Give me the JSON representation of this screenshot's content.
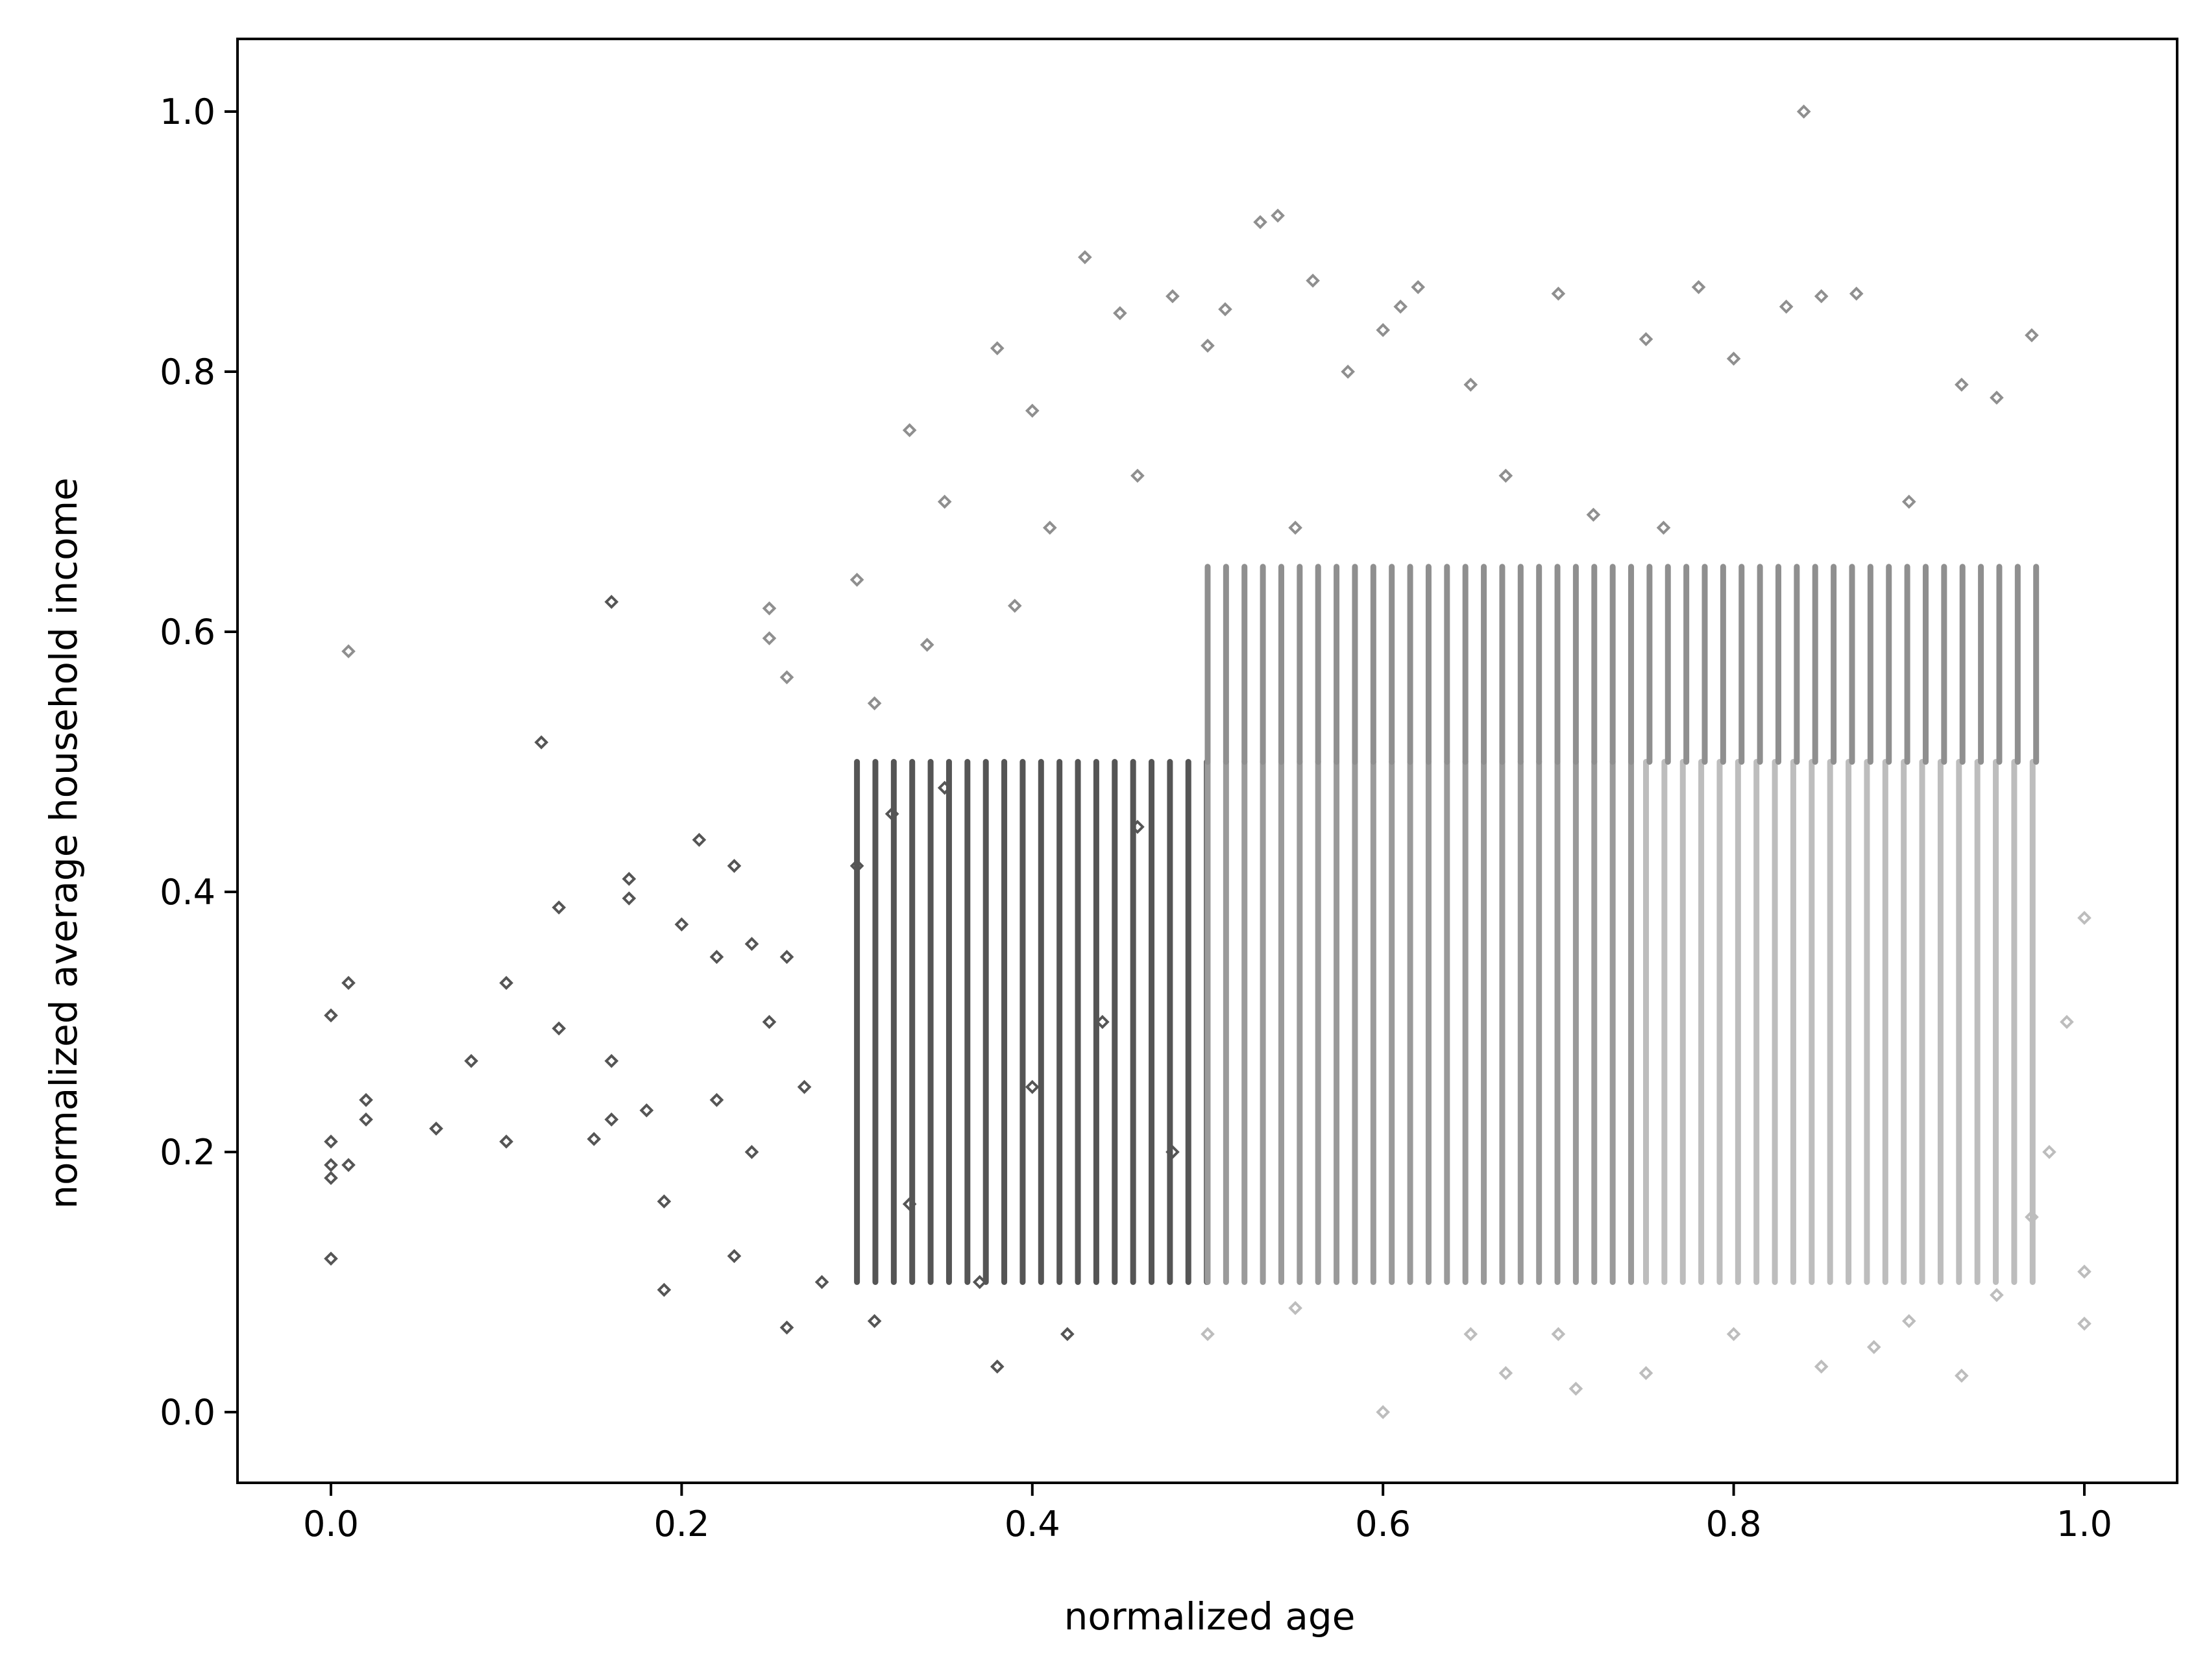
{
  "chart_data": {
    "type": "scatter",
    "title": "",
    "xlabel": "normalized age",
    "ylabel": "normalized average household income",
    "xlim": [
      -0.05,
      1.05
    ],
    "ylim": [
      -0.05,
      1.05
    ],
    "xticks": [
      0.0,
      0.2,
      0.4,
      0.6,
      0.8,
      1.0
    ],
    "xtick_labels": [
      "0.0",
      "0.2",
      "0.4",
      "0.6",
      "0.8",
      "1.0"
    ],
    "yticks": [
      0.0,
      0.2,
      0.4,
      0.6,
      0.8,
      1.0
    ],
    "ytick_labels": [
      "0.0",
      "0.2",
      "0.4",
      "0.6",
      "0.8",
      "1.0"
    ],
    "grid": false,
    "legend": "none",
    "colors": {
      "low_age_low_income": "#555555",
      "high_income": "#8f8f8f",
      "mid_age_low_income": "#9a9a9a",
      "high_age_low_income": "#bdbdbd",
      "small_dots": "#444444"
    },
    "series": [
      {
        "color": "#555555",
        "x": [
          0.0,
          0.0,
          0.0,
          0.0,
          0.0,
          0.01,
          0.01,
          0.02,
          0.02,
          0.06,
          0.08,
          0.1,
          0.1,
          0.12,
          0.13,
          0.13,
          0.15,
          0.16,
          0.16,
          0.16,
          0.17,
          0.17,
          0.18,
          0.19,
          0.19,
          0.2,
          0.21,
          0.22,
          0.22,
          0.23,
          0.23,
          0.24,
          0.24,
          0.25,
          0.26,
          0.26,
          0.27,
          0.28,
          0.3,
          0.31,
          0.32,
          0.33,
          0.35,
          0.37,
          0.38,
          0.4,
          0.42,
          0.44,
          0.46,
          0.48
        ],
        "y": [
          0.305,
          0.208,
          0.19,
          0.18,
          0.118,
          0.33,
          0.19,
          0.24,
          0.225,
          0.218,
          0.27,
          0.33,
          0.208,
          0.515,
          0.388,
          0.295,
          0.21,
          0.623,
          0.225,
          0.27,
          0.41,
          0.395,
          0.232,
          0.162,
          0.094,
          0.375,
          0.44,
          0.24,
          0.35,
          0.42,
          0.12,
          0.2,
          0.36,
          0.3,
          0.065,
          0.35,
          0.25,
          0.1,
          0.42,
          0.07,
          0.46,
          0.16,
          0.48,
          0.1,
          0.035,
          0.25,
          0.06,
          0.3,
          0.45,
          0.2
        ]
      },
      {
        "color": "#8f8f8f",
        "x": [
          0.01,
          0.25,
          0.25,
          0.26,
          0.3,
          0.31,
          0.33,
          0.34,
          0.35,
          0.38,
          0.39,
          0.4,
          0.41,
          0.43,
          0.45,
          0.46,
          0.48,
          0.5,
          0.51,
          0.53,
          0.54,
          0.55,
          0.56,
          0.58,
          0.6,
          0.61,
          0.62,
          0.65,
          0.67,
          0.7,
          0.72,
          0.75,
          0.76,
          0.78,
          0.8,
          0.83,
          0.84,
          0.85,
          0.87,
          0.9,
          0.93,
          0.95,
          0.97
        ],
        "y": [
          0.585,
          0.618,
          0.595,
          0.565,
          0.64,
          0.545,
          0.755,
          0.59,
          0.7,
          0.818,
          0.62,
          0.77,
          0.68,
          0.888,
          0.845,
          0.72,
          0.858,
          0.82,
          0.848,
          0.915,
          0.92,
          0.68,
          0.87,
          0.8,
          0.832,
          0.85,
          0.865,
          0.79,
          0.72,
          0.86,
          0.69,
          0.825,
          0.68,
          0.865,
          0.81,
          0.85,
          1.0,
          0.858,
          0.86,
          0.7,
          0.79,
          0.78,
          0.828
        ]
      },
      {
        "color": "#bdbdbd",
        "x": [
          0.5,
          0.55,
          0.6,
          0.65,
          0.67,
          0.7,
          0.71,
          0.75,
          0.8,
          0.85,
          0.88,
          0.9,
          0.93,
          0.95,
          0.97,
          0.98,
          0.99,
          1.0,
          1.0,
          1.0
        ],
        "y": [
          0.06,
          0.08,
          0.0,
          0.06,
          0.03,
          0.06,
          0.018,
          0.03,
          0.06,
          0.035,
          0.05,
          0.07,
          0.028,
          0.09,
          0.15,
          0.2,
          0.3,
          0.068,
          0.108,
          0.38
        ]
      }
    ],
    "dense_bands": [
      {
        "x_range": [
          0.3,
          0.5
        ],
        "y_range": [
          0.1,
          0.5
        ],
        "color": "#555555"
      },
      {
        "x_range": [
          0.5,
          0.75
        ],
        "y_range": [
          0.1,
          0.5
        ],
        "color": "#9a9a9a"
      },
      {
        "x_range": [
          0.75,
          0.98
        ],
        "y_range": [
          0.1,
          0.5
        ],
        "color": "#bdbdbd"
      },
      {
        "x_range": [
          0.5,
          0.98
        ],
        "y_range": [
          0.5,
          0.65
        ],
        "color": "#8f8f8f"
      }
    ]
  }
}
